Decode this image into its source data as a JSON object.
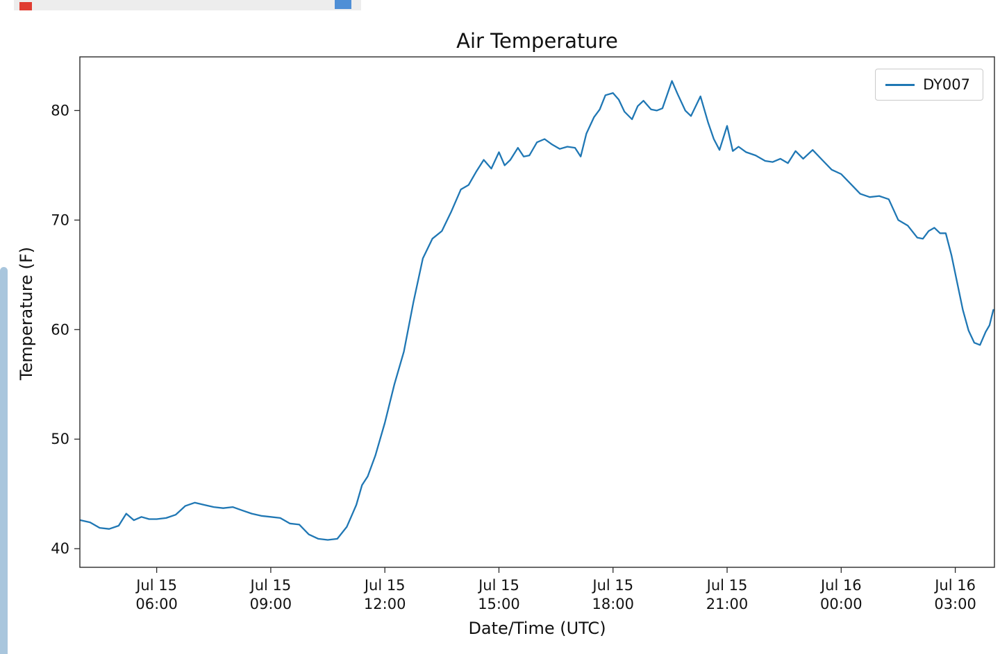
{
  "colors": {
    "series_blue": "#1f77b4",
    "scrollbar": "#a9c6dd",
    "fragment_red": "#e03c31",
    "fragment_blue": "#4f8fd6",
    "fragment_gray": "#ededed",
    "spine": "#2a2a2a"
  },
  "decorations": {
    "left_scrollbar": "vertical-scrollbar-fragment",
    "top_strip": "cut-off-toolbar-fragment"
  },
  "chart_data": {
    "type": "line",
    "title": "Air Temperature",
    "xlabel": "Date/Time (UTC)",
    "ylabel": "Temperature (F)",
    "grid": false,
    "legend": {
      "position": "upper right",
      "entries": [
        {
          "label": "DY007",
          "color": "#1f77b4"
        }
      ]
    },
    "x_units": "hours since Jul 15 00:00 UTC",
    "xlim": [
      3.98,
      28.03
    ],
    "ylim": [
      38.3,
      84.9
    ],
    "yticks": [
      40,
      50,
      60,
      70,
      80
    ],
    "xticks": [
      {
        "v": 6,
        "line1": "Jul 15",
        "line2": "06:00"
      },
      {
        "v": 9,
        "line1": "Jul 15",
        "line2": "09:00"
      },
      {
        "v": 12,
        "line1": "Jul 15",
        "line2": "12:00"
      },
      {
        "v": 15,
        "line1": "Jul 15",
        "line2": "15:00"
      },
      {
        "v": 18,
        "line1": "Jul 15",
        "line2": "18:00"
      },
      {
        "v": 21,
        "line1": "Jul 15",
        "line2": "21:00"
      },
      {
        "v": 24,
        "line1": "Jul 16",
        "line2": "00:00"
      },
      {
        "v": 27,
        "line1": "Jul 16",
        "line2": "03:00"
      }
    ],
    "series": [
      {
        "name": "DY007",
        "color": "#1f77b4",
        "x": [
          4.0,
          4.25,
          4.5,
          4.75,
          5.0,
          5.2,
          5.4,
          5.6,
          5.8,
          6.0,
          6.25,
          6.5,
          6.75,
          7.0,
          7.25,
          7.5,
          7.75,
          8.0,
          8.25,
          8.5,
          8.75,
          9.0,
          9.25,
          9.5,
          9.75,
          10.0,
          10.25,
          10.5,
          10.75,
          11.0,
          11.25,
          11.4,
          11.55,
          11.75,
          12.0,
          12.25,
          12.5,
          12.75,
          13.0,
          13.25,
          13.5,
          13.75,
          14.0,
          14.2,
          14.4,
          14.6,
          14.8,
          15.0,
          15.15,
          15.3,
          15.5,
          15.65,
          15.8,
          16.0,
          16.2,
          16.4,
          16.6,
          16.8,
          17.0,
          17.15,
          17.3,
          17.5,
          17.65,
          17.8,
          18.0,
          18.15,
          18.3,
          18.5,
          18.65,
          18.8,
          19.0,
          19.15,
          19.3,
          19.55,
          19.7,
          19.9,
          20.05,
          20.3,
          20.5,
          20.65,
          20.8,
          21.0,
          21.15,
          21.3,
          21.5,
          21.75,
          22.0,
          22.2,
          22.4,
          22.6,
          22.8,
          23.0,
          23.25,
          23.5,
          23.75,
          24.0,
          24.25,
          24.5,
          24.75,
          25.0,
          25.25,
          25.5,
          25.75,
          26.0,
          26.15,
          26.3,
          26.45,
          26.6,
          26.75,
          26.9,
          27.05,
          27.2,
          27.35,
          27.5,
          27.65,
          27.8,
          27.9,
          28.0
        ],
        "y": [
          42.6,
          42.4,
          41.9,
          41.8,
          42.1,
          43.2,
          42.6,
          42.9,
          42.7,
          42.7,
          42.8,
          43.1,
          43.9,
          44.2,
          44.0,
          43.8,
          43.7,
          43.8,
          43.5,
          43.2,
          43.0,
          42.9,
          42.8,
          42.3,
          42.2,
          41.3,
          40.9,
          40.8,
          40.9,
          42.0,
          44.0,
          45.8,
          46.6,
          48.5,
          51.5,
          55.0,
          58.0,
          62.5,
          66.5,
          68.3,
          69.0,
          70.8,
          72.8,
          73.2,
          74.4,
          75.5,
          74.7,
          76.2,
          75.0,
          75.5,
          76.6,
          75.8,
          75.9,
          77.1,
          77.4,
          76.9,
          76.5,
          76.7,
          76.6,
          75.8,
          77.9,
          79.4,
          80.1,
          81.4,
          81.6,
          81.0,
          79.9,
          79.2,
          80.4,
          80.9,
          80.1,
          80.0,
          80.2,
          82.7,
          81.5,
          80.0,
          79.5,
          81.3,
          78.9,
          77.4,
          76.4,
          78.6,
          76.3,
          76.7,
          76.2,
          75.9,
          75.4,
          75.3,
          75.6,
          75.2,
          76.3,
          75.6,
          76.4,
          75.5,
          74.6,
          74.2,
          73.3,
          72.4,
          72.1,
          72.2,
          71.9,
          70.0,
          69.5,
          68.4,
          68.3,
          69.0,
          69.3,
          68.8,
          68.8,
          66.8,
          64.3,
          61.8,
          59.9,
          58.8,
          58.6,
          59.8,
          60.4,
          61.8
        ]
      }
    ]
  }
}
